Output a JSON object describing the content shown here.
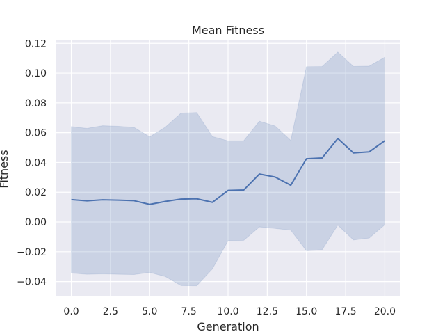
{
  "chart_data": {
    "type": "line",
    "title": "Mean Fitness",
    "xlabel": "Generation",
    "ylabel": "Fitness",
    "xlim": [
      -1,
      21
    ],
    "ylim": [
      -0.05,
      0.122
    ],
    "grid": true,
    "x_ticks": [
      0,
      2.5,
      5,
      7.5,
      10,
      12.5,
      15,
      17.5,
      20
    ],
    "x_tick_labels": [
      "0.0",
      "2.5",
      "5.0",
      "7.5",
      "10.0",
      "12.5",
      "15.0",
      "17.5",
      "20.0"
    ],
    "y_ticks": [
      -0.04,
      -0.02,
      0,
      0.02,
      0.04,
      0.06,
      0.08,
      0.1,
      0.12
    ],
    "y_tick_labels": [
      "−0.04",
      "−0.02",
      "0.00",
      "0.02",
      "0.04",
      "0.06",
      "0.08",
      "0.10",
      "0.12"
    ],
    "x": [
      0,
      1,
      2,
      3,
      4,
      5,
      6,
      7,
      8,
      9,
      10,
      11,
      12,
      13,
      14,
      15,
      16,
      17,
      18,
      19,
      20
    ],
    "series": [
      {
        "values": [
          0.015,
          0.0142,
          0.0149,
          0.0147,
          0.0143,
          0.0118,
          0.0138,
          0.0154,
          0.0156,
          0.0132,
          0.0212,
          0.0215,
          0.0322,
          0.0302,
          0.0247,
          0.0425,
          0.043,
          0.0561,
          0.0464,
          0.0471,
          0.0546
        ],
        "upper": [
          0.0641,
          0.0629,
          0.0647,
          0.0643,
          0.0636,
          0.0572,
          0.0637,
          0.0731,
          0.0735,
          0.0574,
          0.0545,
          0.0546,
          0.0677,
          0.0645,
          0.0548,
          0.1043,
          0.1044,
          0.1141,
          0.1045,
          0.1047,
          0.1107
        ],
        "lower": [
          -0.0343,
          -0.0351,
          -0.0348,
          -0.0351,
          -0.0353,
          -0.0339,
          -0.0366,
          -0.0427,
          -0.0428,
          -0.0315,
          -0.0126,
          -0.0123,
          -0.0033,
          -0.0043,
          -0.0055,
          -0.0193,
          -0.0187,
          -0.0021,
          -0.0121,
          -0.0108,
          -0.0018
        ]
      }
    ],
    "colors": {
      "line": "#4c72b0",
      "band": "#4c72b0",
      "plot_bg": "#eaeaf2",
      "grid": "#ffffff"
    }
  }
}
